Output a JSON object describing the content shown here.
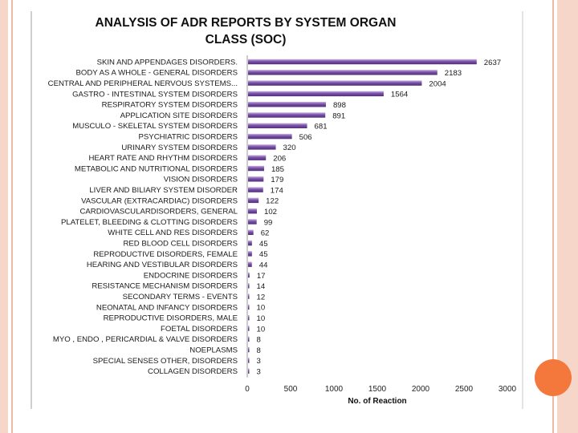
{
  "colors": {
    "bar": "#7a50a8",
    "bar_highlight": "#c5b0de",
    "accent": "#f4773c",
    "edge": "#f6d6c8"
  },
  "chart_data": {
    "type": "bar",
    "orientation": "horizontal",
    "title_lines": [
      "ANALYSIS OF ADR REPORTS BY SYSTEM ORGAN",
      "CLASS (SOC)"
    ],
    "xlabel": "No. of Reaction",
    "ylabel": "",
    "xlim": [
      0,
      3000
    ],
    "xticks": [
      0,
      500,
      1000,
      1500,
      2000,
      2500,
      3000
    ],
    "categories": [
      "SKIN AND APPENDAGES DISORDERS.",
      "BODY AS A WHOLE - GENERAL DISORDERS",
      "CENTRAL AND PERIPHERAL NERVOUS SYSTEMS...",
      "GASTRO - INTESTINAL SYSTEM DISORDERS",
      "RESPIRATORY SYSTEM DISORDERS",
      "APPLICATION SITE DISORDERS",
      "MUSCULO - SKELETAL SYSTEM DISORDERS",
      "PSYCHIATRIC DISORDERS",
      "URINARY SYSTEM DISORDERS",
      "HEART RATE AND RHYTHM DISORDERS",
      "METABOLIC AND NUTRITIONAL DISORDERS",
      "VISION DISORDERS",
      "LIVER AND BILIARY SYSTEM DISORDER",
      "VASCULAR (EXTRACARDIAC) DISORDERS",
      "CARDIOVASCULARDISORDERS, GENERAL",
      "PLATELET, BLEEDING & CLOTTING DISORDERS",
      "WHITE CELL AND RES DISORDERS",
      "RED BLOOD CELL DISORDERS",
      "REPRODUCTIVE DISORDERS, FEMALE",
      "HEARING AND VESTIBULAR DISORDERS",
      "ENDOCRINE DISORDERS",
      "RESISTANCE MECHANISM DISORDERS",
      "SECONDARY TERMS - EVENTS",
      "NEONATAL AND INFANCY DISORDERS",
      "REPRODUCTIVE DISORDERS, MALE",
      "FOETAL DISORDERS",
      "MYO , ENDO , PERICARDIAL & VALVE DISORDERS",
      "NOEPLASMS",
      "SPECIAL SENSES OTHER, DISORDERS",
      "COLLAGEN DISORDERS"
    ],
    "values": [
      2637,
      2183,
      2004,
      1564,
      898,
      891,
      681,
      506,
      320,
      206,
      185,
      179,
      174,
      122,
      102,
      99,
      62,
      45,
      45,
      44,
      17,
      14,
      12,
      10,
      10,
      10,
      8,
      8,
      3,
      3
    ],
    "value_labels": [
      "2637",
      "2183",
      "2004",
      "1564",
      "898",
      "891",
      "681",
      "506",
      "320",
      "206",
      "185",
      "179",
      "174",
      "122",
      "102",
      "99",
      "62",
      "45",
      "45",
      "44",
      "17",
      "14",
      "12",
      "10",
      "10",
      "10",
      "8",
      "8",
      "3",
      "3"
    ]
  }
}
